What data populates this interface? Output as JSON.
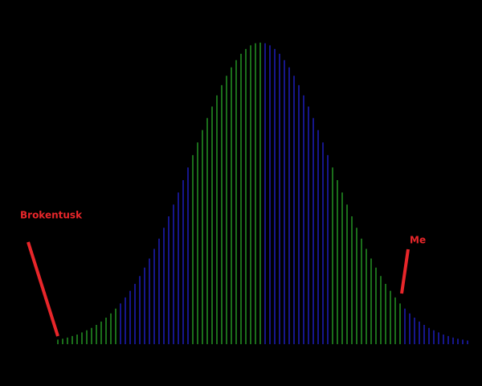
{
  "chart_data": {
    "type": "bar",
    "series": [
      {
        "color": "#228b22",
        "values": [
          1.5,
          1.8,
          2.2,
          2.7,
          3.2,
          3.9,
          4.6,
          5.4,
          6.4,
          7.5,
          8.8,
          10.2,
          11.8,
          null,
          null,
          null,
          null,
          null,
          null,
          null,
          null,
          null,
          null,
          null,
          null,
          null,
          null,
          null,
          62.7,
          66.9,
          71.0,
          75.0,
          78.8,
          82.5,
          85.9,
          89.0,
          91.8,
          94.2,
          96.3,
          97.9,
          99.1,
          99.8,
          100,
          null,
          null,
          null,
          null,
          null,
          null,
          null,
          null,
          null,
          null,
          null,
          null,
          null,
          null,
          58.6,
          54.4,
          50.3,
          46.3,
          42.4,
          38.6,
          35.0,
          31.6,
          28.4,
          25.4,
          22.6,
          20.0,
          17.7,
          15.5,
          13.5,
          null,
          null,
          null,
          null,
          null,
          null,
          null,
          null,
          null,
          null,
          null,
          null,
          null,
          null
        ]
      },
      {
        "color": "#1c1cb0",
        "values": [
          null,
          null,
          null,
          null,
          null,
          null,
          null,
          null,
          null,
          null,
          null,
          null,
          null,
          13.5,
          15.5,
          17.7,
          20.0,
          22.6,
          25.4,
          28.4,
          31.6,
          35.0,
          38.6,
          42.4,
          46.3,
          50.3,
          54.4,
          58.6,
          null,
          null,
          null,
          null,
          null,
          null,
          null,
          null,
          null,
          null,
          null,
          null,
          null,
          null,
          null,
          99.8,
          99.1,
          97.9,
          96.3,
          94.2,
          91.8,
          89.0,
          85.9,
          82.5,
          78.8,
          75.0,
          71.0,
          66.9,
          62.7,
          null,
          null,
          null,
          null,
          null,
          null,
          null,
          null,
          null,
          null,
          null,
          null,
          null,
          null,
          null,
          11.8,
          10.2,
          8.8,
          7.5,
          6.4,
          5.4,
          4.6,
          3.9,
          3.2,
          2.7,
          2.2,
          1.8,
          1.5,
          1.2
        ]
      }
    ],
    "ylim": [
      0,
      100
    ],
    "annotations": [
      {
        "text": "Brokentusk"
      },
      {
        "text": "Me"
      }
    ]
  }
}
